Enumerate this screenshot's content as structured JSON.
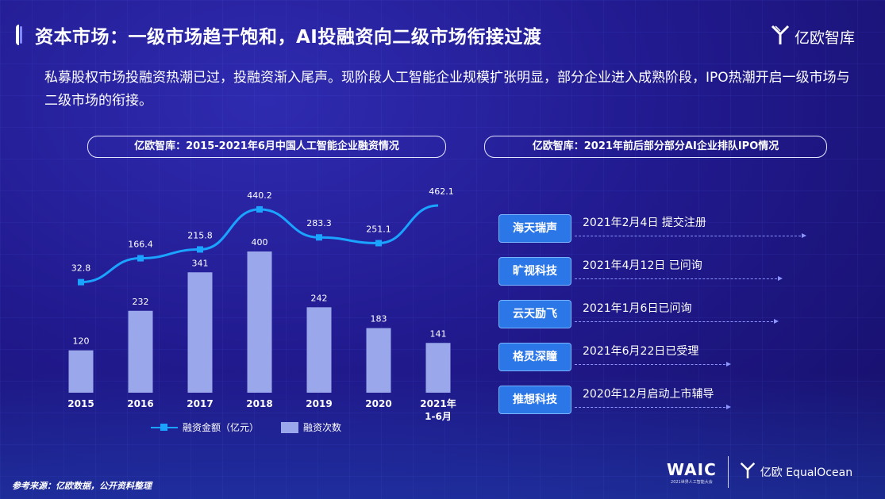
{
  "title": "资本市场：一级市场趋于饱和，AI投融资向二级市场衔接过渡",
  "brand": "亿欧智库",
  "intro": "私募股权市场投融资热潮已过，投融资渐入尾声。现阶段人工智能企业规模扩张明显，部分企业进入成熟阶段，IPO热潮开启一级市场与二级市场的衔接。",
  "left_panel_title": "亿欧智库：2015-2021年6月中国人工智能企业融资情况",
  "right_panel_title": "亿欧智库：2021年前后部分部分AI企业排队IPO情况",
  "chart_data": {
    "type": "bar",
    "categories": [
      "2015",
      "2016",
      "2017",
      "2018",
      "2019",
      "2020",
      "2021年\n1-6月"
    ],
    "series": [
      {
        "name": "融资次数",
        "type": "bar",
        "values": [
          120,
          232,
          341,
          400,
          242,
          183,
          141
        ],
        "color": "#9aa7ea"
      },
      {
        "name": "融资金额（亿元）",
        "type": "line",
        "values": [
          32.8,
          166.4,
          215.8,
          440.2,
          283.3,
          251.1,
          462.1
        ],
        "color": "#1aa3ff"
      }
    ],
    "legend_position": "bottom"
  },
  "legend": {
    "line_label": "融资金额（亿元）",
    "bar_label": "融资次数"
  },
  "ipo": [
    {
      "name": "海天瑞声",
      "status": "2021年2月4日 提交注册"
    },
    {
      "name": "旷视科技",
      "status": "2021年4月12日 已问询"
    },
    {
      "name": "云天励飞",
      "status": "2021年1月6日已问询"
    },
    {
      "name": "格灵深瞳",
      "status": "2021年6月22日已受理"
    },
    {
      "name": "推想科技",
      "status": "2020年12月启动上市辅导"
    }
  ],
  "source": "参考来源：亿欧数据，公开资料整理",
  "footer": {
    "waic": "WAIC",
    "waic_sub": "2021世界人工智能大会",
    "equalocean": "亿欧 EqualOcean"
  }
}
